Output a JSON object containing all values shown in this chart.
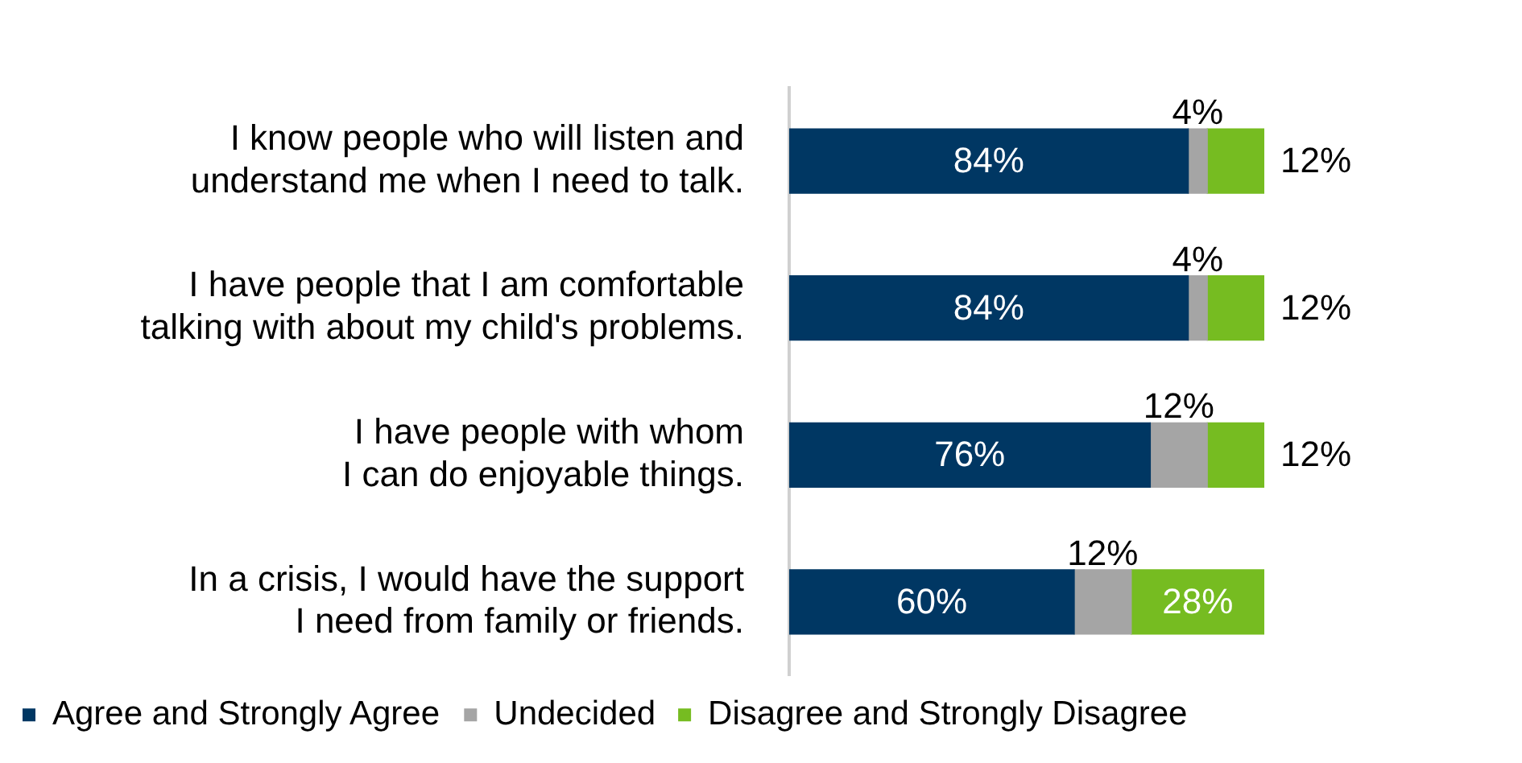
{
  "chart_data": {
    "type": "bar",
    "orientation": "horizontal",
    "stacked": true,
    "legend": "bottom",
    "grid": false,
    "categories": [
      "I know people who will listen and\nunderstand me when I need to talk.",
      "I have people that I am comfortable\ntalking with about my child's problems.",
      "I have people with whom\nI can do enjoyable things.",
      "In a crisis, I would have the support\nI need from family or friends."
    ],
    "series": [
      {
        "name": "Agree and Strongly Agree",
        "color": "#003763",
        "values": [
          84,
          84,
          76,
          60
        ],
        "value_labels": [
          "84%",
          "84%",
          "76%",
          "60%"
        ]
      },
      {
        "name": "Undecided",
        "color": "#a5a5a5",
        "values": [
          4,
          4,
          12,
          12
        ],
        "value_labels": [
          "4%",
          "4%",
          "12%",
          "12%"
        ]
      },
      {
        "name": "Disagree and Strongly Disagree",
        "color": "#76bc21",
        "values": [
          12,
          12,
          12,
          28
        ],
        "value_labels": [
          "12%",
          "12%",
          "12%",
          "28%"
        ]
      }
    ]
  }
}
